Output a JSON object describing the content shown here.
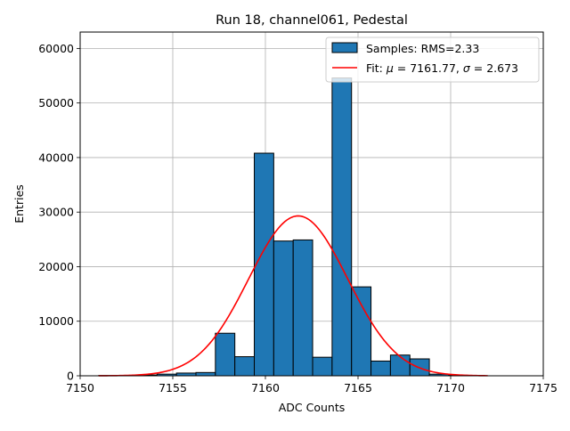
{
  "chart_data": {
    "type": "bar",
    "title": "Run 18, channel061, Pedestal",
    "xlabel": "ADC Counts",
    "ylabel": "Entries",
    "xlim": [
      7150,
      7175
    ],
    "ylim": [
      0,
      63000
    ],
    "xticks": [
      7150,
      7155,
      7160,
      7165,
      7170,
      7175
    ],
    "yticks": [
      0,
      10000,
      20000,
      30000,
      40000,
      50000,
      60000
    ],
    "grid": true,
    "legend_position": "top-right",
    "bar_color": "#1f77b4",
    "fit_color": "#ff0000",
    "histogram": {
      "name": "Samples: RMS=2.33",
      "bin_width": 1.05,
      "bins": [
        {
          "left": 7151.0,
          "count": 50
        },
        {
          "left": 7152.05,
          "count": 80
        },
        {
          "left": 7153.1,
          "count": 150
        },
        {
          "left": 7154.15,
          "count": 300
        },
        {
          "left": 7155.2,
          "count": 500
        },
        {
          "left": 7156.25,
          "count": 600
        },
        {
          "left": 7157.3,
          "count": 7800
        },
        {
          "left": 7158.35,
          "count": 3500
        },
        {
          "left": 7159.4,
          "count": 40800
        },
        {
          "left": 7160.45,
          "count": 24700
        },
        {
          "left": 7161.5,
          "count": 24900
        },
        {
          "left": 7162.55,
          "count": 3400
        },
        {
          "left": 7163.6,
          "count": 54600
        },
        {
          "left": 7164.65,
          "count": 16300
        },
        {
          "left": 7165.7,
          "count": 2700
        },
        {
          "left": 7166.75,
          "count": 3800
        },
        {
          "left": 7167.8,
          "count": 3100
        },
        {
          "left": 7168.85,
          "count": 300
        },
        {
          "left": 7169.9,
          "count": 100
        }
      ]
    },
    "fit": {
      "name_prefix": "Fit: ",
      "mu_symbol": "μ",
      "sigma_symbol": "σ",
      "mu_text": " = 7161.77, ",
      "sigma_text": " = 2.673",
      "mu": 7161.77,
      "sigma": 2.673,
      "amplitude": 29300,
      "x_range": [
        7151,
        7172
      ]
    }
  }
}
